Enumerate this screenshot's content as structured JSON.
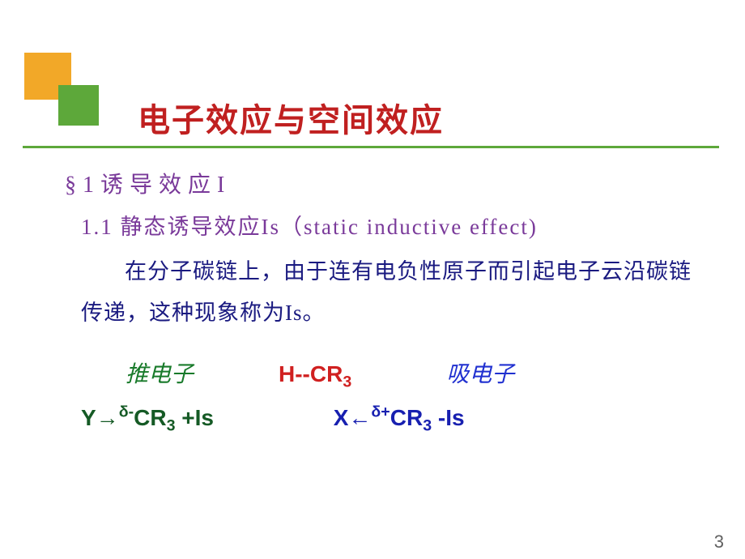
{
  "slide": {
    "title": "电子效应与空间效应",
    "section_num": "§1",
    "section_label": "诱导效应I",
    "subsection": "1.1 静态诱导效应Is（static inductive effect)",
    "body": "在分子碳链上，由于连有电负性原子而引起电子云沿碳链传递，这种现象称为Is。",
    "push_label": "推电子",
    "center_formula": "H--CR",
    "center_sub": "3",
    "pull_label": "吸电子",
    "left_Y": "Y→",
    "left_sup": "δ-",
    "left_CR": "CR",
    "left_sub": "3",
    "left_tail": "  +Is",
    "right_X": "X←",
    "right_sup": "δ+",
    "right_CR": "CR",
    "right_sub": "3",
    "right_tail": "  -Is",
    "page_number": "3"
  },
  "style": {
    "background_color": "#ffffff",
    "title_color": "#c02020",
    "accent_orange": "#f2a828",
    "accent_green": "#5da83a",
    "underline_color": "#5da83a",
    "section_color": "#7a3a9a",
    "body_color": "#1a1a80",
    "push_color": "#187a2a",
    "center_color": "#d02020",
    "pull_color": "#2030d0",
    "left_formula_color": "#155a25",
    "right_formula_color": "#1820b0",
    "page_num_color": "#606060",
    "title_fontsize": 40,
    "section_fontsize": 28,
    "body_fontsize": 27,
    "formula_fontsize": 28
  }
}
